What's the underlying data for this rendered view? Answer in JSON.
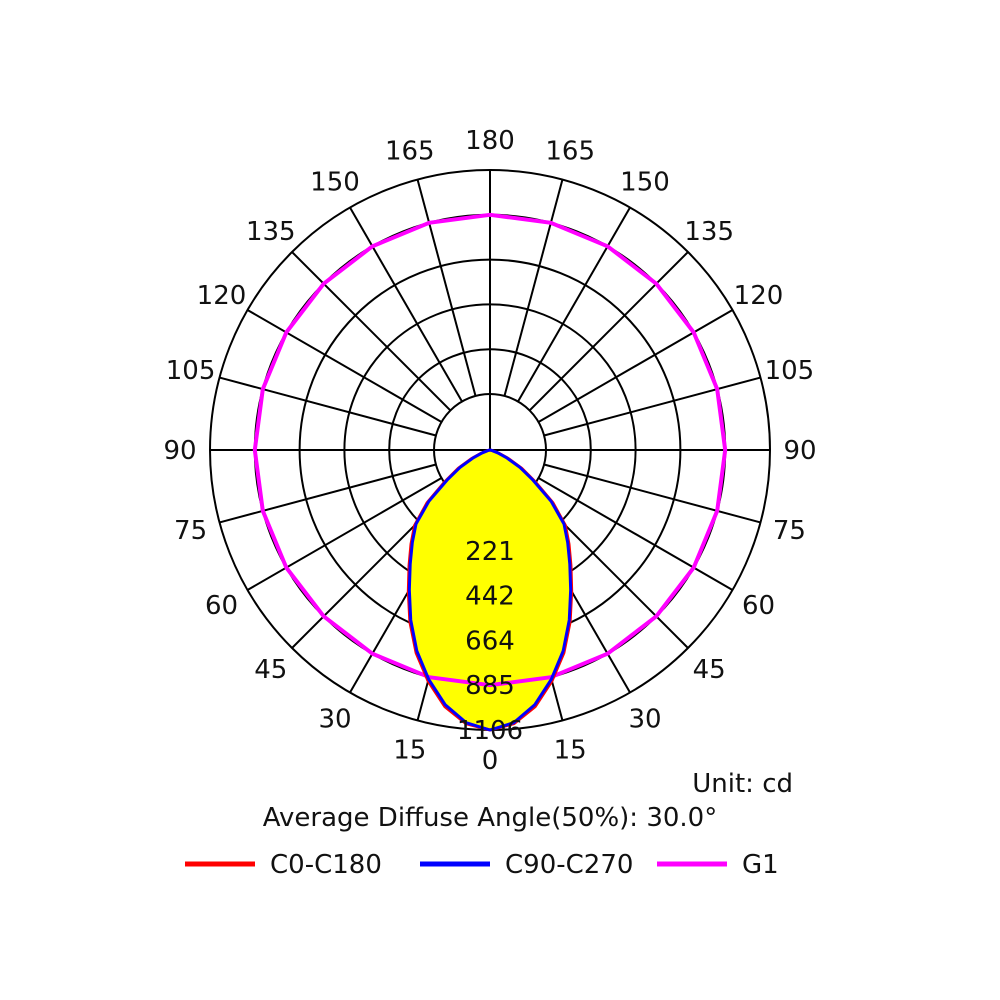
{
  "chart_data": {
    "type": "polar",
    "angle_labels": [
      "0",
      "15",
      "30",
      "45",
      "60",
      "75",
      "90",
      "105",
      "120",
      "135",
      "150",
      "165",
      "180"
    ],
    "radial_ticks": [
      221,
      442,
      664,
      885,
      1106
    ],
    "radial_tick_labels": [
      "221",
      "442",
      "664",
      "885",
      "1106"
    ],
    "rmax": 1106,
    "unit_label": "Unit: cd",
    "diffuse_angle_label": "Average Diffuse Angle(50%): 30.0°",
    "series": [
      {
        "name": "C0-C180",
        "color": "#ff0000",
        "angles": [
          0,
          5,
          10,
          15,
          20,
          25,
          30,
          35,
          40,
          45,
          50,
          55,
          60,
          65,
          70,
          75,
          80,
          85,
          90
        ],
        "values": [
          1106,
          1080,
          1010,
          905,
          790,
          660,
          530,
          420,
          330,
          250,
          180,
          120,
          80,
          45,
          20,
          6,
          0,
          0,
          0
        ]
      },
      {
        "name": "C90-C270",
        "color": "#0000ff",
        "angles": [
          0,
          5,
          10,
          15,
          20,
          25,
          30,
          35,
          40,
          45,
          50,
          55,
          60,
          65,
          70,
          75,
          80,
          85,
          90
        ],
        "values": [
          1106,
          1075,
          1000,
          895,
          780,
          650,
          520,
          410,
          320,
          240,
          175,
          115,
          75,
          40,
          18,
          5,
          0,
          0,
          0
        ]
      },
      {
        "name": "G1",
        "color": "#ff00ff",
        "angles": [
          0,
          15,
          30,
          45,
          60,
          75,
          90,
          105,
          120,
          135,
          150,
          165,
          180
        ],
        "values": [
          885,
          885,
          885,
          885,
          885,
          885,
          885,
          885,
          885,
          885,
          885,
          885,
          885
        ]
      }
    ],
    "fill_color": "#ffff00",
    "grid": true
  }
}
